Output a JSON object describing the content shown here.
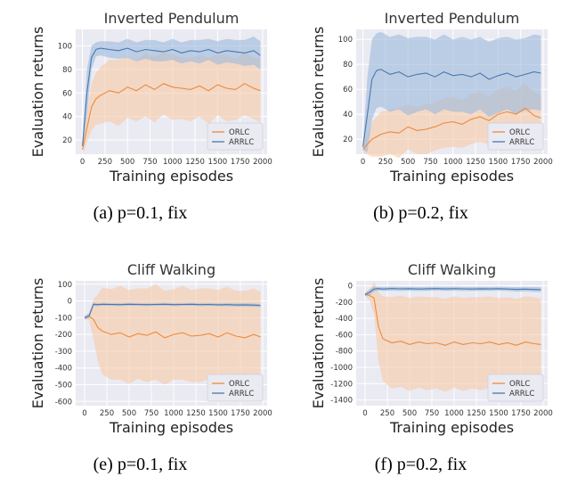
{
  "colors": {
    "plot_bg": "#eaeaf2",
    "grid": "#ffffff",
    "orlc": "#ee8a3a",
    "orlc_band": "#f6c9a6",
    "arrlc": "#4a78ae",
    "arrlc_band": "#9bb9dc"
  },
  "chart_data": [
    {
      "type": "line",
      "title": "Inverted Pendulum",
      "xlabel": "Training episodes",
      "ylabel": "Evaluation returns",
      "caption": "(a) p=0.1, fix",
      "xlim": [
        -75,
        2050
      ],
      "ylim": [
        8,
        114
      ],
      "xticks": [
        0,
        250,
        500,
        750,
        1000,
        1250,
        1500,
        1750,
        2000
      ],
      "yticks": [
        20,
        40,
        60,
        80,
        100
      ],
      "grid": true,
      "legend": "lower-right",
      "series": [
        {
          "name": "ORLC",
          "color_key": "orlc",
          "band_key": "orlc_band",
          "x": [
            0,
            50,
            100,
            150,
            200,
            300,
            400,
            500,
            600,
            700,
            800,
            900,
            1000,
            1100,
            1200,
            1300,
            1400,
            1500,
            1600,
            1700,
            1800,
            1900,
            1975
          ],
          "y": [
            12,
            30,
            48,
            55,
            58,
            62,
            60,
            65,
            62,
            67,
            63,
            68,
            65,
            64,
            63,
            66,
            62,
            67,
            64,
            63,
            68,
            64,
            62
          ],
          "band": [
            4,
            12,
            20,
            22,
            24,
            26,
            28,
            26,
            26,
            27,
            28,
            26,
            28,
            26,
            27,
            26,
            28,
            26,
            28,
            26,
            27,
            26,
            27
          ]
        },
        {
          "name": "ARRLC",
          "color_key": "arrlc",
          "band_key": "arrlc_band",
          "x": [
            0,
            50,
            100,
            150,
            200,
            300,
            400,
            500,
            600,
            700,
            800,
            900,
            1000,
            1100,
            1200,
            1300,
            1400,
            1500,
            1600,
            1700,
            1800,
            1900,
            1975
          ],
          "y": [
            15,
            60,
            90,
            97,
            98,
            97,
            96,
            98,
            95,
            97,
            96,
            95,
            97,
            94,
            96,
            95,
            97,
            94,
            96,
            95,
            94,
            96,
            92
          ],
          "band": [
            4,
            20,
            10,
            6,
            6,
            7,
            7,
            8,
            8,
            8,
            9,
            8,
            9,
            9,
            9,
            10,
            9,
            10,
            10,
            10,
            11,
            12,
            12
          ]
        }
      ]
    },
    {
      "type": "line",
      "title": "Inverted Pendulum",
      "xlabel": "Training episodes",
      "ylabel": "Evaluation returns",
      "caption": "(b) p=0.2, fix",
      "xlim": [
        -75,
        2050
      ],
      "ylim": [
        8,
        108
      ],
      "xticks": [
        0,
        250,
        500,
        750,
        1000,
        1250,
        1500,
        1750,
        2000
      ],
      "yticks": [
        20,
        40,
        60,
        80,
        100
      ],
      "grid": true,
      "legend": "lower-right",
      "series": [
        {
          "name": "ORLC",
          "color_key": "orlc",
          "band_key": "orlc_band",
          "x": [
            0,
            50,
            100,
            150,
            200,
            300,
            400,
            500,
            600,
            700,
            800,
            900,
            1000,
            1100,
            1200,
            1300,
            1400,
            1500,
            1600,
            1700,
            1800,
            1900,
            1975
          ],
          "y": [
            12,
            16,
            20,
            22,
            24,
            26,
            25,
            30,
            27,
            28,
            30,
            33,
            34,
            32,
            36,
            38,
            35,
            40,
            42,
            40,
            45,
            39,
            37
          ],
          "band": [
            3,
            8,
            14,
            16,
            18,
            18,
            20,
            18,
            19,
            20,
            19,
            20,
            20,
            19,
            20,
            20,
            19,
            20,
            20,
            19,
            20,
            19,
            18
          ]
        },
        {
          "name": "ARRLC",
          "color_key": "arrlc",
          "band_key": "arrlc_band",
          "x": [
            0,
            50,
            100,
            150,
            200,
            300,
            400,
            500,
            600,
            700,
            800,
            900,
            1000,
            1100,
            1200,
            1300,
            1400,
            1500,
            1600,
            1700,
            1800,
            1900,
            1975
          ],
          "y": [
            14,
            40,
            68,
            75,
            76,
            72,
            74,
            70,
            72,
            73,
            70,
            74,
            71,
            72,
            70,
            73,
            68,
            71,
            73,
            70,
            72,
            74,
            73
          ],
          "band": [
            3,
            30,
            32,
            30,
            30,
            30,
            30,
            31,
            30,
            29,
            30,
            30,
            29,
            30,
            30,
            29,
            30,
            30,
            29,
            30,
            29,
            30,
            30
          ]
        }
      ]
    },
    {
      "type": "line",
      "title": "Cliff Walking",
      "xlabel": "Training episodes",
      "ylabel": "Evaluation returns",
      "caption": "(e) p=0.1, fix",
      "xlim": [
        -100,
        2050
      ],
      "ylim": [
        -625,
        120
      ],
      "xticks": [
        0,
        250,
        500,
        750,
        1000,
        1250,
        1500,
        1750,
        2000
      ],
      "yticks": [
        100,
        0,
        -100,
        -200,
        -300,
        -400,
        -500,
        -600
      ],
      "grid": true,
      "legend": "lower-right",
      "series": [
        {
          "name": "ORLC",
          "color_key": "orlc",
          "band_key": "orlc_band",
          "x": [
            0,
            50,
            100,
            150,
            200,
            300,
            400,
            500,
            600,
            700,
            800,
            900,
            1000,
            1100,
            1200,
            1300,
            1400,
            1500,
            1600,
            1700,
            1800,
            1900,
            1975
          ],
          "y": [
            -100,
            -90,
            -110,
            -160,
            -180,
            -200,
            -190,
            -215,
            -195,
            -205,
            -185,
            -220,
            -200,
            -190,
            -210,
            -205,
            -195,
            -215,
            -190,
            -210,
            -220,
            -200,
            -215
          ],
          "band": [
            10,
            20,
            120,
            200,
            260,
            270,
            280,
            280,
            270,
            280,
            285,
            280,
            270,
            280,
            275,
            280,
            270,
            280,
            275,
            270,
            280,
            275,
            270
          ]
        },
        {
          "name": "ARRLC",
          "color_key": "arrlc",
          "band_key": "arrlc_band",
          "x": [
            0,
            50,
            100,
            150,
            200,
            300,
            400,
            500,
            600,
            700,
            800,
            900,
            1000,
            1100,
            1200,
            1300,
            1400,
            1500,
            1600,
            1700,
            1800,
            1900,
            1975
          ],
          "y": [
            -100,
            -90,
            -20,
            -22,
            -20,
            -21,
            -22,
            -20,
            -21,
            -22,
            -21,
            -20,
            -22,
            -21,
            -20,
            -22,
            -21,
            -23,
            -22,
            -24,
            -23,
            -25,
            -27
          ],
          "band": [
            10,
            15,
            12,
            8,
            8,
            8,
            8,
            8,
            8,
            8,
            8,
            8,
            8,
            8,
            8,
            8,
            8,
            8,
            9,
            9,
            10,
            10,
            10
          ]
        }
      ]
    },
    {
      "type": "line",
      "title": "Cliff Walking",
      "xlabel": "Training episodes",
      "ylabel": "Evaluation returns",
      "caption": "(f) p=0.2, fix",
      "xlim": [
        -100,
        2050
      ],
      "ylim": [
        -1470,
        60
      ],
      "xticks": [
        0,
        250,
        500,
        750,
        1000,
        1250,
        1500,
        1750,
        2000
      ],
      "yticks": [
        0,
        -200,
        -400,
        -600,
        -800,
        -1000,
        -1200,
        -1400
      ],
      "grid": true,
      "legend": "lower-right",
      "series": [
        {
          "name": "ORLC",
          "color_key": "orlc",
          "band_key": "orlc_band",
          "x": [
            0,
            50,
            100,
            150,
            200,
            300,
            400,
            500,
            600,
            700,
            800,
            900,
            1000,
            1100,
            1200,
            1300,
            1400,
            1500,
            1600,
            1700,
            1800,
            1900,
            1975
          ],
          "y": [
            -100,
            -120,
            -150,
            -500,
            -650,
            -700,
            -680,
            -720,
            -690,
            -710,
            -700,
            -730,
            -690,
            -720,
            -700,
            -710,
            -690,
            -720,
            -700,
            -730,
            -690,
            -710,
            -720
          ],
          "band": [
            20,
            60,
            200,
            420,
            520,
            560,
            560,
            570,
            560,
            570,
            560,
            570,
            560,
            570,
            560,
            570,
            560,
            570,
            560,
            570,
            560,
            570,
            560
          ]
        },
        {
          "name": "ARRLC",
          "color_key": "arrlc",
          "band_key": "arrlc_band",
          "x": [
            0,
            50,
            100,
            150,
            200,
            300,
            400,
            500,
            600,
            700,
            800,
            900,
            1000,
            1100,
            1200,
            1300,
            1400,
            1500,
            1600,
            1700,
            1800,
            1900,
            1975
          ],
          "y": [
            -110,
            -80,
            -40,
            -35,
            -40,
            -35,
            -38,
            -36,
            -40,
            -37,
            -35,
            -39,
            -36,
            -38,
            -40,
            -37,
            -39,
            -36,
            -40,
            -45,
            -42,
            -46,
            -48
          ],
          "band": [
            20,
            40,
            30,
            25,
            25,
            25,
            25,
            25,
            25,
            25,
            25,
            25,
            25,
            25,
            25,
            25,
            25,
            25,
            25,
            28,
            28,
            30,
            30
          ]
        }
      ]
    }
  ]
}
